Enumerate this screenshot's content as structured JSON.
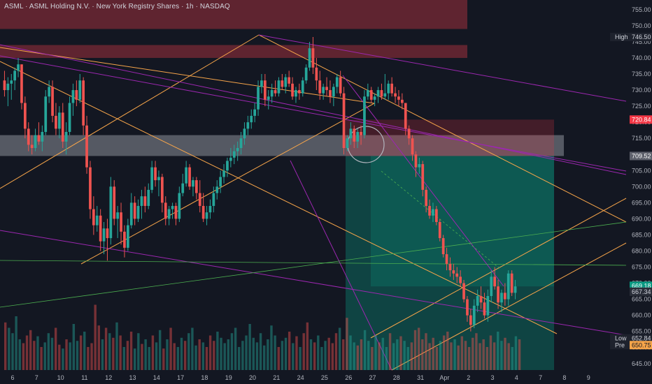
{
  "title": "ASML · ASML Holding N.V. · New York Registry Shares · 1h · NASDAQ",
  "badges": {
    "high_label": "High",
    "high_value": "746.50",
    "red_price": "720.84",
    "gray_price": "709.52",
    "last_price": "669.18",
    "green_price": "667.34",
    "low_label": "Low",
    "low_value": "652.84",
    "pre_label": "Pre",
    "pre_value": "650.75"
  },
  "colors": {
    "background": "#131722",
    "up": "#26a69a",
    "down": "#ef5350",
    "channel": "#f7a54a",
    "trendline": "#9c27b0",
    "resistance_zone": "#7a2a36",
    "support_zone": "#d1d4dc",
    "long_target": "#089981",
    "long_stop": "#f23645",
    "axis_text": "#b2b5be"
  },
  "chart_data": {
    "type": "candlestick",
    "title": "ASML · ASML Holding N.V. · New York Registry Shares · 1h · NASDAQ",
    "interval": "1h",
    "ylim": [
      643,
      758
    ],
    "y_ticks": [
      755,
      750,
      745,
      740,
      735,
      730,
      725,
      720,
      715,
      710,
      705,
      700,
      695,
      690,
      685,
      680,
      675,
      670,
      665,
      660,
      655,
      650,
      645
    ],
    "x_ticks": [
      "6",
      "7",
      "10",
      "11",
      "12",
      "13",
      "14",
      "17",
      "18",
      "19",
      "20",
      "21",
      "24",
      "25",
      "26",
      "27",
      "28",
      "31",
      "Apr",
      "2",
      "3",
      "4",
      "7",
      "8",
      "9"
    ],
    "x_tick_index": [
      0,
      14,
      28,
      42,
      56,
      70,
      84,
      98,
      112,
      126,
      140,
      154,
      168,
      182,
      196,
      210,
      224,
      238,
      252,
      266,
      280,
      294,
      308,
      322,
      336
    ],
    "grid": false,
    "candles": [
      [
        733,
        736,
        728,
        730
      ],
      [
        730,
        734,
        725,
        732
      ],
      [
        732,
        735,
        727,
        733
      ],
      [
        733,
        737,
        730,
        736
      ],
      [
        736,
        740,
        734,
        738
      ],
      [
        738,
        738,
        724,
        726
      ],
      [
        726,
        728,
        715,
        718
      ],
      [
        718,
        720,
        711,
        713
      ],
      [
        713,
        716,
        710,
        712
      ],
      [
        712,
        718,
        711,
        716
      ],
      [
        716,
        720,
        713,
        714
      ],
      [
        714,
        719,
        711,
        717
      ],
      [
        717,
        730,
        716,
        728
      ],
      [
        728,
        733,
        726,
        731
      ],
      [
        731,
        733,
        720,
        722
      ],
      [
        722,
        726,
        716,
        718
      ],
      [
        718,
        725,
        715,
        723
      ],
      [
        723,
        726,
        712,
        714
      ],
      [
        714,
        720,
        710,
        717
      ],
      [
        717,
        728,
        716,
        726
      ],
      [
        726,
        732,
        722,
        730
      ],
      [
        730,
        733,
        725,
        727
      ],
      [
        727,
        735,
        726,
        733
      ],
      [
        733,
        734,
        716,
        719
      ],
      [
        719,
        722,
        704,
        706
      ],
      [
        706,
        708,
        690,
        693
      ],
      [
        693,
        697,
        685,
        688
      ],
      [
        688,
        694,
        686,
        691
      ],
      [
        691,
        693,
        680,
        683
      ],
      [
        683,
        689,
        679,
        687
      ],
      [
        687,
        690,
        677,
        684
      ],
      [
        684,
        703,
        682,
        700
      ],
      [
        700,
        702,
        688,
        690
      ],
      [
        690,
        694,
        684,
        692
      ],
      [
        692,
        695,
        682,
        686
      ],
      [
        686,
        688,
        678,
        681
      ],
      [
        681,
        690,
        680,
        688
      ],
      [
        688,
        698,
        687,
        695
      ],
      [
        695,
        697,
        688,
        690
      ],
      [
        690,
        696,
        689,
        694
      ],
      [
        694,
        699,
        690,
        697
      ],
      [
        697,
        700,
        692,
        694
      ],
      [
        694,
        701,
        693,
        699
      ],
      [
        699,
        708,
        698,
        706
      ],
      [
        706,
        708,
        700,
        702
      ],
      [
        702,
        705,
        697,
        703
      ],
      [
        703,
        704,
        692,
        695
      ],
      [
        695,
        697,
        688,
        690
      ],
      [
        690,
        694,
        688,
        693
      ],
      [
        693,
        695,
        690,
        694
      ],
      [
        694,
        695,
        688,
        690
      ],
      [
        690,
        700,
        689,
        698
      ],
      [
        698,
        704,
        697,
        701
      ],
      [
        701,
        708,
        700,
        706
      ],
      [
        706,
        707,
        699,
        700
      ],
      [
        700,
        703,
        697,
        702
      ],
      [
        702,
        703,
        696,
        698
      ],
      [
        698,
        702,
        692,
        694
      ],
      [
        694,
        698,
        689,
        690
      ],
      [
        690,
        694,
        688,
        692
      ],
      [
        692,
        696,
        690,
        694
      ],
      [
        694,
        700,
        692,
        698
      ],
      [
        698,
        702,
        696,
        700
      ],
      [
        700,
        705,
        698,
        703
      ],
      [
        703,
        707,
        701,
        705
      ],
      [
        705,
        709,
        703,
        708
      ],
      [
        708,
        712,
        706,
        709
      ],
      [
        709,
        713,
        707,
        711
      ],
      [
        711,
        714,
        708,
        712
      ],
      [
        712,
        717,
        710,
        715
      ],
      [
        715,
        720,
        713,
        718
      ],
      [
        718,
        722,
        716,
        720
      ],
      [
        720,
        724,
        718,
        722
      ],
      [
        722,
        726,
        720,
        724
      ],
      [
        724,
        733,
        722,
        731
      ],
      [
        731,
        735,
        729,
        733
      ],
      [
        733,
        735,
        725,
        727
      ],
      [
        727,
        730,
        724,
        728
      ],
      [
        728,
        732,
        726,
        730
      ],
      [
        730,
        733,
        728,
        729
      ],
      [
        729,
        734,
        728,
        733
      ],
      [
        733,
        735,
        730,
        731
      ],
      [
        731,
        735,
        729,
        734
      ],
      [
        734,
        736,
        731,
        732
      ],
      [
        732,
        734,
        727,
        728
      ],
      [
        728,
        731,
        726,
        730
      ],
      [
        730,
        732,
        727,
        729
      ],
      [
        729,
        734,
        728,
        733
      ],
      [
        733,
        738,
        732,
        737
      ],
      [
        737,
        745,
        736,
        743
      ],
      [
        743,
        746.5,
        735,
        737
      ],
      [
        737,
        740,
        730,
        733
      ],
      [
        733,
        736,
        727,
        729
      ],
      [
        729,
        732,
        727,
        731
      ],
      [
        731,
        734,
        728,
        730
      ],
      [
        730,
        733,
        726,
        728
      ],
      [
        728,
        732,
        725,
        731
      ],
      [
        731,
        735,
        729,
        734
      ],
      [
        734,
        736,
        728,
        729
      ],
      [
        729,
        731,
        710,
        712
      ],
      [
        712,
        716,
        711,
        715
      ],
      [
        715,
        720,
        713,
        718
      ],
      [
        718,
        719,
        712,
        714
      ],
      [
        714,
        718,
        712,
        717
      ],
      [
        717,
        719,
        713,
        716
      ],
      [
        716,
        730,
        715,
        728
      ],
      [
        728,
        732,
        727,
        730
      ],
      [
        730,
        731,
        726,
        727
      ],
      [
        727,
        729,
        725,
        728
      ],
      [
        728,
        731,
        726,
        730
      ],
      [
        730,
        732,
        727,
        728
      ],
      [
        728,
        735,
        727,
        729
      ],
      [
        729,
        733,
        727,
        732
      ],
      [
        732,
        734,
        728,
        729
      ],
      [
        729,
        731,
        726,
        728
      ],
      [
        728,
        730,
        725,
        727
      ],
      [
        727,
        729,
        724,
        726
      ],
      [
        726,
        726,
        716,
        718
      ],
      [
        718,
        719,
        713,
        715
      ],
      [
        715,
        716,
        708,
        710
      ],
      [
        710,
        711,
        703,
        706
      ],
      [
        706,
        709,
        704,
        707
      ],
      [
        707,
        708,
        697,
        699
      ],
      [
        699,
        700,
        692,
        694
      ],
      [
        694,
        696,
        690,
        691
      ],
      [
        691,
        695,
        689,
        693
      ],
      [
        693,
        694,
        688,
        689
      ],
      [
        689,
        690,
        683,
        684
      ],
      [
        684,
        685,
        678,
        679
      ],
      [
        679,
        681,
        674,
        676
      ],
      [
        676,
        678,
        672,
        674
      ],
      [
        674,
        676,
        671,
        673
      ],
      [
        673,
        675,
        670,
        672
      ],
      [
        672,
        674,
        669,
        670
      ],
      [
        670,
        671,
        664,
        665
      ],
      [
        665,
        666,
        658,
        660
      ],
      [
        660,
        662,
        655,
        657
      ],
      [
        657,
        665,
        656,
        663
      ],
      [
        663,
        668,
        661,
        666
      ],
      [
        666,
        669,
        662,
        664
      ],
      [
        664,
        667,
        659,
        660
      ],
      [
        660,
        668,
        658,
        666
      ],
      [
        666,
        674,
        664,
        672
      ],
      [
        672,
        675,
        668,
        669
      ],
      [
        669,
        671,
        662,
        664
      ],
      [
        664,
        668,
        661,
        667
      ],
      [
        667,
        670,
        663,
        665
      ],
      [
        665,
        674,
        663,
        673
      ],
      [
        673,
        674,
        666,
        667
      ],
      [
        667,
        671,
        665,
        669
      ]
    ],
    "volume_ylim": [
      0,
      100
    ],
    "volume": [
      62,
      55,
      48,
      70,
      40,
      35,
      45,
      52,
      38,
      44,
      30,
      36,
      48,
      42,
      55,
      33,
      28,
      40,
      36,
      60,
      38,
      45,
      50,
      30,
      35,
      85,
      58,
      40,
      55,
      48,
      42,
      62,
      45,
      30,
      38,
      50,
      28,
      48,
      34,
      40,
      30,
      45,
      36,
      52,
      28,
      40,
      55,
      35,
      30,
      42,
      38,
      48,
      55,
      32,
      40,
      36,
      30,
      45,
      38,
      50,
      42,
      35,
      40,
      48,
      55,
      30,
      38,
      45,
      60,
      42,
      36,
      48,
      32,
      40,
      58,
      45,
      30,
      38,
      42,
      50,
      35,
      44,
      30,
      48,
      62,
      40,
      36,
      45,
      30,
      38,
      42,
      35,
      48,
      55,
      40,
      68,
      45,
      36,
      32,
      40,
      52,
      38,
      30,
      45,
      36,
      42,
      30,
      48,
      35,
      40,
      44,
      38,
      30,
      36,
      52,
      55,
      40,
      48,
      35,
      42,
      30,
      38,
      45,
      50,
      36,
      40,
      32,
      44,
      38,
      30,
      42,
      48,
      35,
      40,
      30,
      45,
      36,
      50,
      38,
      42,
      35,
      30,
      44,
      40
    ],
    "zones": [
      {
        "kind": "resistance",
        "low": 749,
        "high": 758
      },
      {
        "kind": "resistance",
        "low": 740,
        "high": 744
      },
      {
        "kind": "support",
        "low": 709.52,
        "high": 716
      },
      {
        "kind": "stop",
        "low": 709.52,
        "high": 720.84
      },
      {
        "kind": "target",
        "low": 643,
        "high": 709.52
      }
    ]
  }
}
